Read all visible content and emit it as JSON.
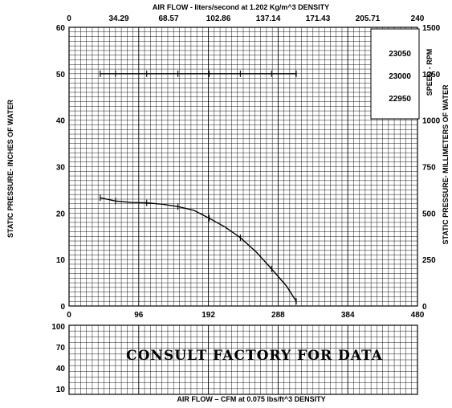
{
  "chart_data": [
    {
      "type": "line",
      "top_axis_title": "AIR FLOW - liters/second at   1.202 Kg/m^3  DENSITY",
      "top_ticks": [
        "0",
        "34.29",
        "68.57",
        "102.86",
        "137.14",
        "171.43",
        "205.71",
        "240"
      ],
      "x_ticks": [
        "0",
        "96",
        "192",
        "288",
        "384",
        "480"
      ],
      "xlim": [
        0,
        480
      ],
      "ylabel": "STATIC PRESSURE- INCHES OF WATER",
      "y_ticks": [
        "0",
        "10",
        "20",
        "30",
        "40",
        "50",
        "60"
      ],
      "ylim": [
        0,
        60
      ],
      "right_ylabel": "STATIC PRESSURE- MILLIMETERS OF WATER",
      "right_ticks": [
        "0",
        "250",
        "500",
        "750",
        "1000",
        "1250",
        "1500"
      ],
      "speed_label": "SPEED - RPM",
      "speed_ticks": [
        "23050",
        "23000",
        "22950"
      ],
      "speed_value": 23000,
      "grid": true,
      "series": [
        {
          "values": [
            {
              "x": 43,
              "y": 23.3
            },
            {
              "x": 64,
              "y": 22.6
            },
            {
              "x": 86,
              "y": 22.3
            },
            {
              "x": 107,
              "y": 22.2
            },
            {
              "x": 129,
              "y": 21.9
            },
            {
              "x": 150,
              "y": 21.4
            },
            {
              "x": 172,
              "y": 20.6
            },
            {
              "x": 193,
              "y": 18.9
            },
            {
              "x": 215,
              "y": 17.0
            },
            {
              "x": 236,
              "y": 14.7
            },
            {
              "x": 258,
              "y": 11.6
            },
            {
              "x": 279,
              "y": 8.0
            },
            {
              "x": 300,
              "y": 4.2
            },
            {
              "x": 313,
              "y": 1.0
            }
          ]
        },
        {
          "values": [
            {
              "x": 43,
              "y": 50
            },
            {
              "x": 64,
              "y": 50
            },
            {
              "x": 86,
              "y": 50
            },
            {
              "x": 107,
              "y": 50
            },
            {
              "x": 129,
              "y": 50
            },
            {
              "x": 150,
              "y": 50
            },
            {
              "x": 172,
              "y": 50
            },
            {
              "x": 193,
              "y": 50
            },
            {
              "x": 215,
              "y": 50
            },
            {
              "x": 236,
              "y": 50
            },
            {
              "x": 258,
              "y": 50
            },
            {
              "x": 279,
              "y": 50
            },
            {
              "x": 300,
              "y": 50
            },
            {
              "x": 313,
              "y": 50
            }
          ]
        }
      ]
    },
    {
      "type": "line",
      "y_ticks": [
        "100",
        "70",
        "40",
        "10"
      ],
      "xlabel": "AIR FLOW – CFM at 0.075 lbs/ft^3 DENSITY",
      "grid": true,
      "annotation": "CONSULT  FACTORY  FOR  DATA"
    }
  ]
}
